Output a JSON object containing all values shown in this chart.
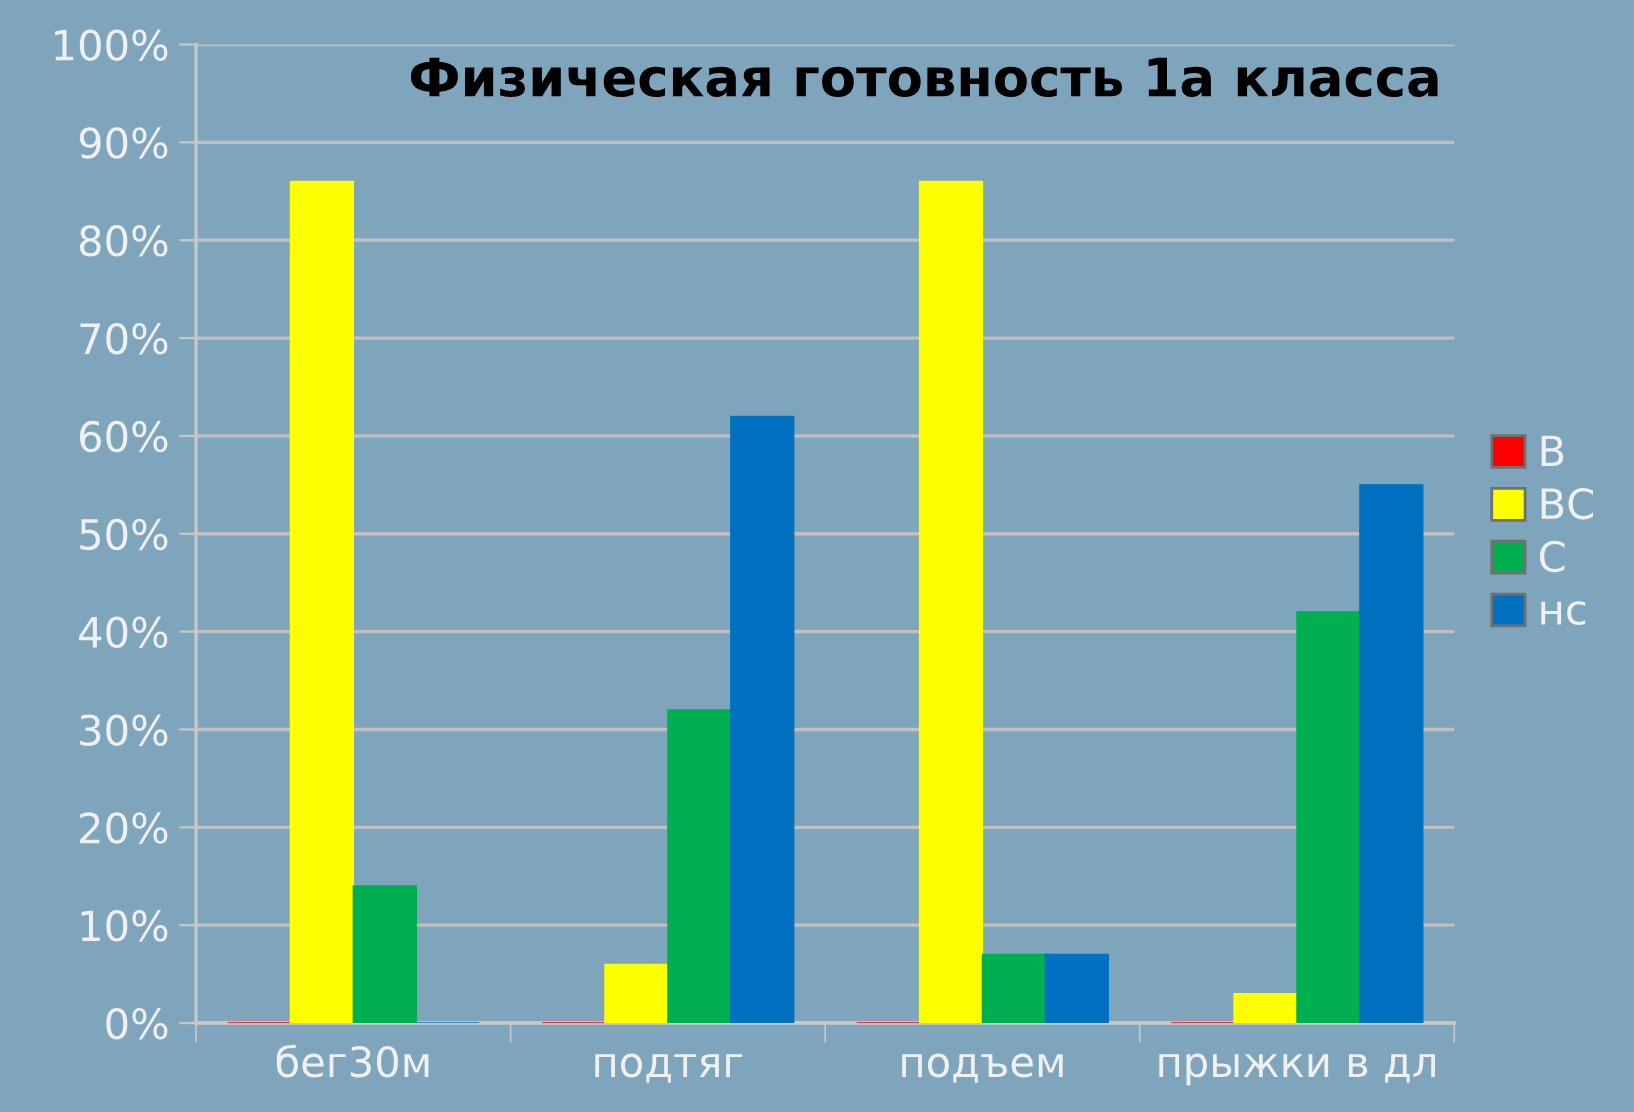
{
  "chart_data": {
    "type": "bar",
    "title": "Физическая готовность 1а класса",
    "categories": [
      "бег30м",
      "подтяг",
      "подъем",
      "прыжки в дл"
    ],
    "series": [
      {
        "name": "В",
        "color": "#ff0000",
        "values": [
          0,
          0,
          0,
          0
        ]
      },
      {
        "name": "ВС",
        "color": "#ffff00",
        "values": [
          86,
          6,
          86,
          3
        ]
      },
      {
        "name": "С",
        "color": "#00b050",
        "values": [
          14,
          32,
          7,
          42
        ]
      },
      {
        "name": "нс",
        "color": "#0070c0",
        "values": [
          0,
          62,
          7,
          55
        ]
      }
    ],
    "ylim": [
      0,
      100
    ],
    "yticks": [
      {
        "value": 0,
        "label": "0%"
      },
      {
        "value": 10,
        "label": "10%"
      },
      {
        "value": 20,
        "label": "20%"
      },
      {
        "value": 30,
        "label": "30%"
      },
      {
        "value": 40,
        "label": "40%"
      },
      {
        "value": 50,
        "label": "50%"
      },
      {
        "value": 60,
        "label": "60%"
      },
      {
        "value": 70,
        "label": "70%"
      },
      {
        "value": 80,
        "label": "80%"
      },
      {
        "value": 90,
        "label": "90%"
      },
      {
        "value": 100,
        "label": "100%"
      }
    ],
    "grid": "y",
    "legend": "right"
  }
}
